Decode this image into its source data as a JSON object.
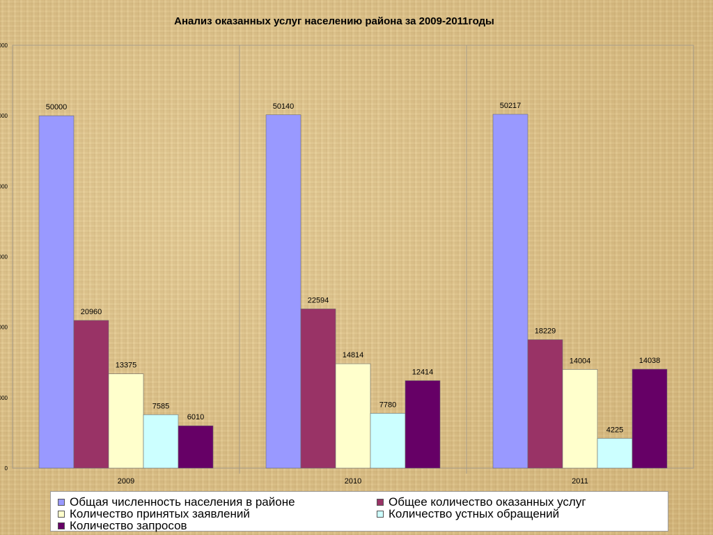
{
  "chart_data": {
    "type": "bar",
    "title": "Анализ оказанных услуг населению района за 2009-2011годы",
    "categories": [
      "2009",
      "2010",
      "2011"
    ],
    "ylim": [
      0,
      60000
    ],
    "y_ticks": [
      "0",
      "000",
      "000",
      "000",
      "000",
      "000",
      "000"
    ],
    "grid": false,
    "legend_position": "bottom",
    "series": [
      {
        "name": "Общая численность населения в районе",
        "color": "#9999ff",
        "values": [
          50000,
          50140,
          50217
        ]
      },
      {
        "name": "Общее количество оказанных услуг",
        "color": "#993366",
        "values": [
          20960,
          22594,
          18229
        ]
      },
      {
        "name": "Количество принятых заявлений",
        "color": "#ffffcc",
        "values": [
          13375,
          14814,
          14004
        ]
      },
      {
        "name": "Количество устных обращений",
        "color": "#ccffff",
        "values": [
          7585,
          7780,
          4225
        ]
      },
      {
        "name": "Количество запросов",
        "color": "#660066",
        "values": [
          6010,
          12414,
          14038
        ]
      }
    ]
  }
}
